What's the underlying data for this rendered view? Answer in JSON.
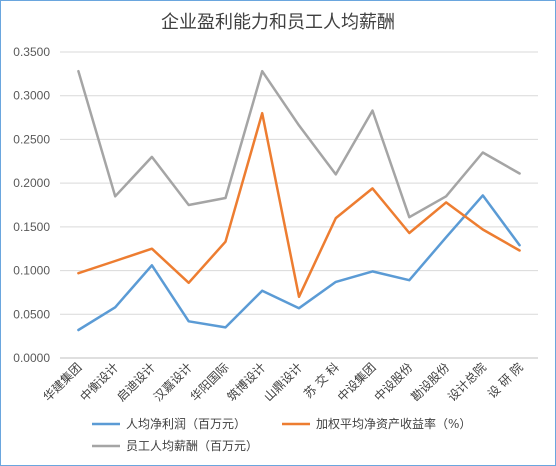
{
  "chart_data": {
    "type": "line",
    "title": "企业盈利能力和员工人均薪酬",
    "categories": [
      "华建集团",
      "中衡设计",
      "启迪设计",
      "汉嘉设计",
      "华阳国际",
      "筑博设计",
      "山鼎设计",
      "苏 交 科",
      "中设集团",
      "中设股份",
      "勘设股份",
      "设计总院",
      "设 研 院"
    ],
    "ylim": [
      0,
      0.35
    ],
    "yticks": [
      "0.0000",
      "0.0500",
      "0.1000",
      "0.1500",
      "0.2000",
      "0.2500",
      "0.3000",
      "0.3500"
    ],
    "grid": true,
    "legend_position": "bottom",
    "series": [
      {
        "name": "人均净利润（百万元）",
        "color": "#5b9bd5",
        "values": [
          0.032,
          0.058,
          0.106,
          0.042,
          0.035,
          0.077,
          0.057,
          0.087,
          0.099,
          0.089,
          0.138,
          0.186,
          0.129
        ]
      },
      {
        "name": "加权平均净资产收益率（%）",
        "color": "#ed7d31",
        "values": [
          0.097,
          0.111,
          0.125,
          0.086,
          0.133,
          0.28,
          0.07,
          0.16,
          0.194,
          0.143,
          0.178,
          0.147,
          0.123
        ]
      },
      {
        "name": "员工人均薪酬（百万元）",
        "color": "#a5a5a5",
        "values": [
          0.328,
          0.185,
          0.23,
          0.175,
          0.183,
          0.328,
          0.266,
          0.21,
          0.283,
          0.161,
          0.185,
          0.235,
          0.211
        ]
      }
    ]
  }
}
